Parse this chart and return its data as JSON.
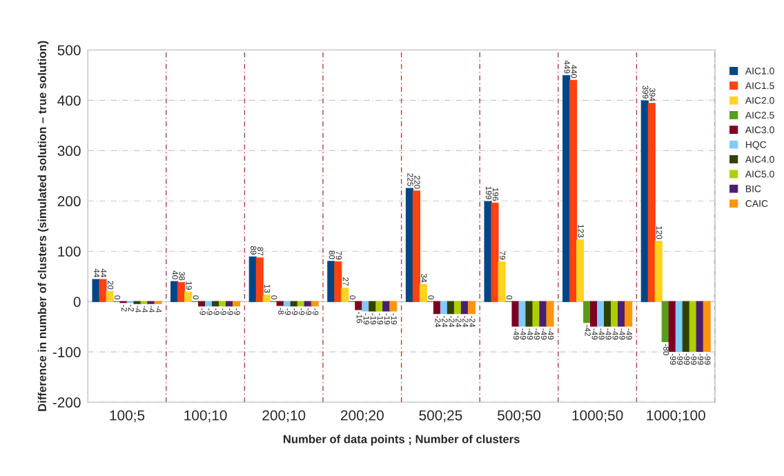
{
  "chart_data": {
    "type": "bar",
    "xlabel": "Number of data points ; Number of clusters",
    "ylabel": "Difference in number of clusters (simulated solution – true solution)",
    "categories": [
      "100;5",
      "100;10",
      "200;10",
      "200;20",
      "500;25",
      "500;50",
      "1000;50",
      "1000;100"
    ],
    "series": [
      {
        "name": "AIC1.0",
        "color": "#004586",
        "values": [
          44,
          40,
          89,
          80,
          225,
          199,
          449,
          399
        ]
      },
      {
        "name": "AIC1.5",
        "color": "#ff420e",
        "values": [
          44,
          38,
          87,
          79,
          220,
          196,
          440,
          394
        ]
      },
      {
        "name": "AIC2.0",
        "color": "#ffd320",
        "values": [
          20,
          19,
          13,
          27,
          34,
          79,
          123,
          120
        ]
      },
      {
        "name": "AIC2.5",
        "color": "#579d1c",
        "values": [
          0,
          0,
          0,
          0,
          0,
          0,
          -42,
          -80
        ]
      },
      {
        "name": "AIC3.0",
        "color": "#7e0021",
        "values": [
          -2,
          -9,
          -8,
          -16,
          -24,
          -49,
          -49,
          -99
        ]
      },
      {
        "name": "HQC",
        "color": "#83caff",
        "values": [
          -2,
          -9,
          -9,
          -19,
          -24,
          -49,
          -49,
          -99
        ]
      },
      {
        "name": "AIC4.0",
        "color": "#314004",
        "values": [
          -4,
          -9,
          -9,
          -19,
          -24,
          -49,
          -49,
          -99
        ]
      },
      {
        "name": "AIC5.0",
        "color": "#aecf00",
        "values": [
          -4,
          -9,
          -9,
          -19,
          -24,
          -49,
          -49,
          -99
        ]
      },
      {
        "name": "BIC",
        "color": "#4b1f6f",
        "values": [
          -4,
          -9,
          -9,
          -19,
          -24,
          -49,
          -49,
          -99
        ]
      },
      {
        "name": "CAIC",
        "color": "#ff950e",
        "values": [
          -4,
          -9,
          -9,
          -19,
          -24,
          -49,
          -49,
          -99
        ]
      }
    ],
    "ylim": [
      -200,
      500
    ],
    "yticks": [
      -200,
      -100,
      0,
      100,
      200,
      300,
      400,
      500
    ],
    "grid": true,
    "legend": "right",
    "data_labels": true
  }
}
